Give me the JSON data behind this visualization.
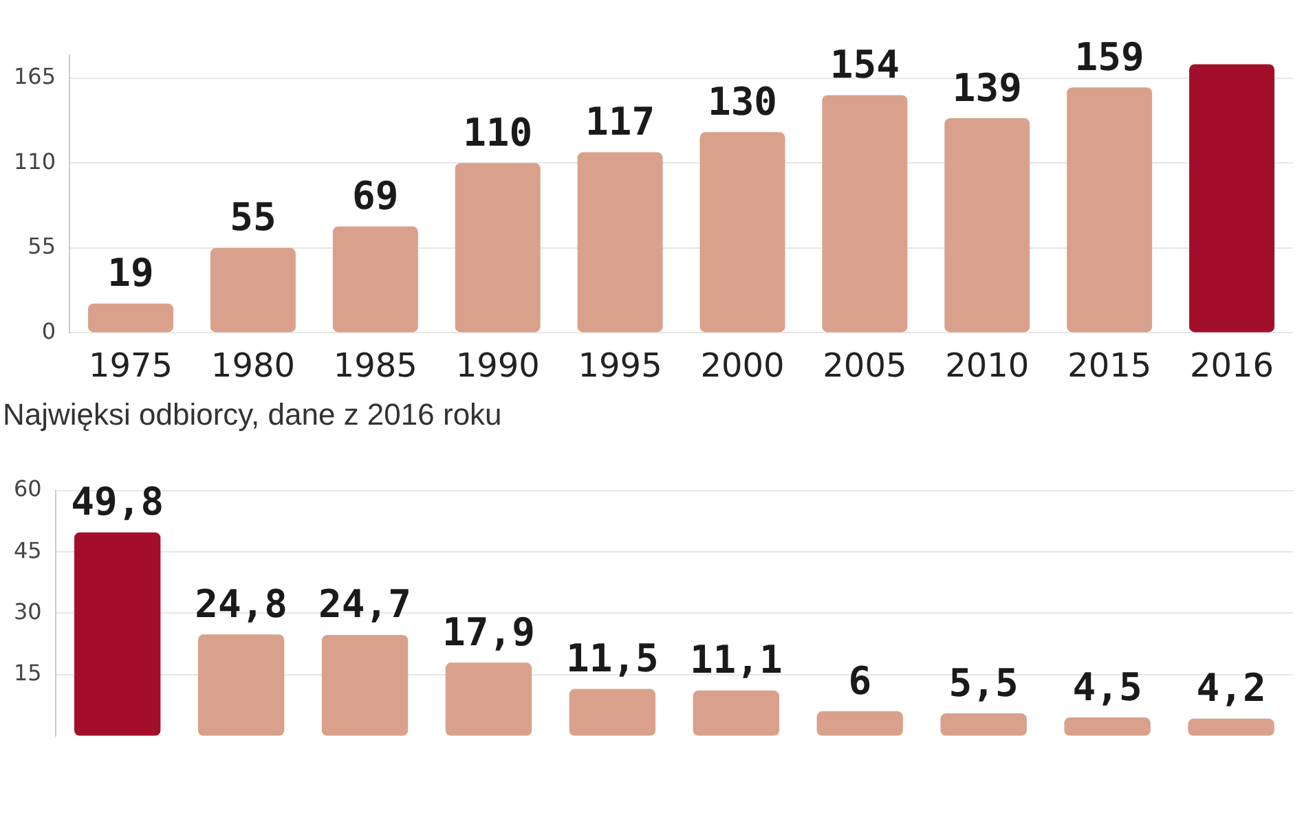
{
  "chart_data": [
    {
      "type": "bar",
      "categories": [
        "1975",
        "1980",
        "1985",
        "1990",
        "1995",
        "2000",
        "2005",
        "2010",
        "2015",
        "2016"
      ],
      "values": [
        19,
        55,
        69,
        110,
        117,
        130,
        154,
        139,
        159,
        174
      ],
      "colors": [
        "#d9a18b",
        "#d9a18b",
        "#d9a18b",
        "#d9a18b",
        "#d9a18b",
        "#d9a18b",
        "#d9a18b",
        "#d9a18b",
        "#d9a18b",
        "#a30f2b"
      ],
      "value_labels": [
        "19",
        "55",
        "69",
        "110",
        "117",
        "130",
        "154",
        "139",
        "159",
        null
      ],
      "ylim": [
        0,
        180
      ],
      "yticks": [
        0,
        55,
        110,
        165
      ],
      "grid": "y"
    },
    {
      "type": "bar",
      "title": "Najwięksi odbiorcy, dane z 2016 roku",
      "categories": [
        null,
        null,
        null,
        null,
        null,
        null,
        null,
        null,
        null,
        null
      ],
      "values": [
        49.8,
        24.8,
        24.7,
        17.9,
        11.5,
        11.1,
        6,
        5.5,
        4.5,
        4.2
      ],
      "colors": [
        "#a30f2b",
        "#d9a18b",
        "#d9a18b",
        "#d9a18b",
        "#d9a18b",
        "#d9a18b",
        "#d9a18b",
        "#d9a18b",
        "#d9a18b",
        "#d9a18b"
      ],
      "value_labels": [
        "49,8",
        "24,8",
        "24,7",
        "17,9",
        "11,5",
        "11,1",
        "6",
        "5,5",
        "4,5",
        "4,2"
      ],
      "ylim": [
        0,
        60
      ],
      "yticks": [
        15,
        30,
        45,
        60
      ],
      "grid": "y",
      "tick_labels": "y"
    }
  ]
}
